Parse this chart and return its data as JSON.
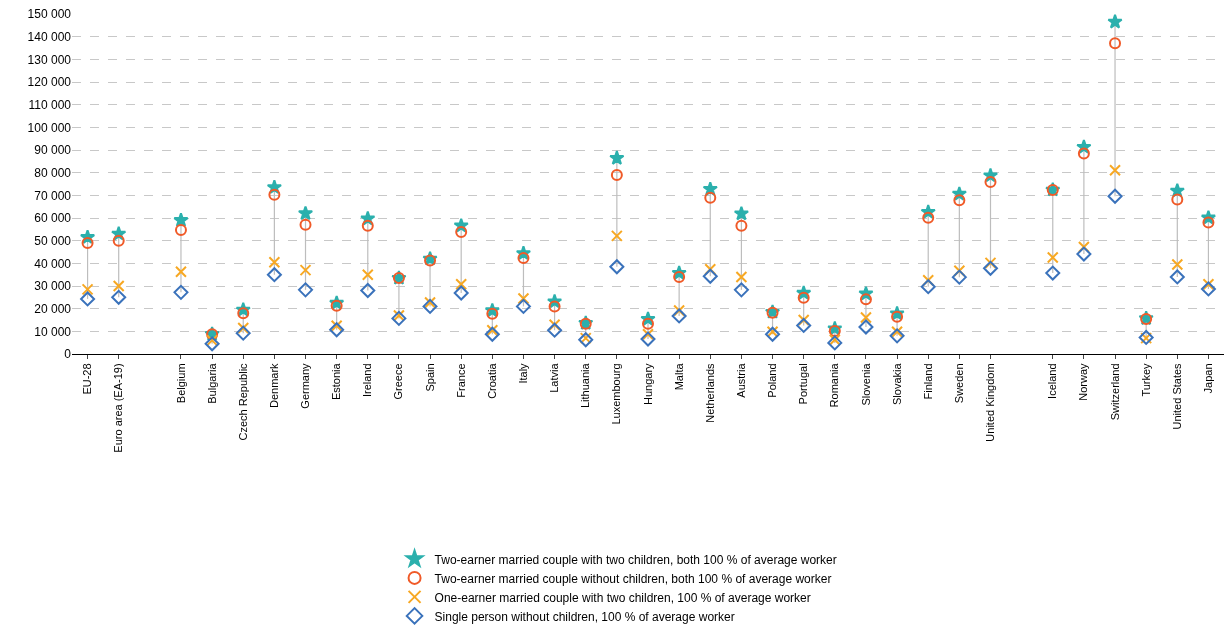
{
  "chart_data": {
    "type": "scatter",
    "categories": [
      "EU-28",
      "Euro area (EA-19)",
      null,
      "Belgium",
      "Bulgaria",
      "Czech Republic",
      "Denmark",
      "Germany",
      "Estonia",
      "Ireland",
      "Greece",
      "Spain",
      "France",
      "Croatia",
      "Italy",
      "Latvia",
      "Lithuania",
      "Luxembourg",
      "Hungary",
      "Malta",
      "Netherlands",
      "Austria",
      "Poland",
      "Portugal",
      "Romania",
      "Slovenia",
      "Slovakia",
      "Finland",
      "Sweden",
      "United Kingdom",
      null,
      "Iceland",
      "Norway",
      "Switzerland",
      "Turkey",
      "United States",
      "Japan"
    ],
    "series": [
      {
        "name": "Two-earner married couple with two children, both 100 % of average worker",
        "color": "#2bb0ad",
        "marker": "star",
        "values": [
          51500,
          53000,
          null,
          59000,
          8800,
          19500,
          73500,
          62000,
          22500,
          59700,
          33500,
          42000,
          56600,
          19200,
          44400,
          23100,
          13600,
          86400,
          15400,
          35700,
          72700,
          61900,
          18500,
          26900,
          11200,
          26600,
          17800,
          62600,
          70600,
          78700,
          null,
          72400,
          91300,
          146500,
          15700,
          72000,
          60100
        ]
      },
      {
        "name": "Two-earner married couple without children, both 100 % of average worker",
        "color": "#f05a28",
        "marker": "circle",
        "values": [
          49000,
          50000,
          null,
          54700,
          8700,
          18000,
          70300,
          57000,
          21300,
          56600,
          33500,
          41300,
          53800,
          17800,
          42300,
          21000,
          13300,
          79000,
          13300,
          34000,
          68900,
          56600,
          18200,
          24800,
          10100,
          24100,
          16400,
          60100,
          67800,
          75900,
          null,
          72400,
          88500,
          137100,
          15400,
          68200,
          58000
        ]
      },
      {
        "name": "One-earner married couple with two children, 100 % of average worker",
        "color": "#f7a823",
        "marker": "cross",
        "values": [
          28500,
          30000,
          null,
          36300,
          6000,
          11500,
          40500,
          37000,
          12500,
          35000,
          17000,
          22700,
          30800,
          10500,
          24500,
          12900,
          7000,
          52100,
          8700,
          19200,
          37400,
          34000,
          9800,
          15000,
          6300,
          16100,
          9800,
          32500,
          36700,
          40200,
          null,
          42600,
          47200,
          81100,
          7000,
          39500,
          30800
        ]
      },
      {
        "name": "Single person without children, 100 % of average worker",
        "color": "#3a72bb",
        "marker": "diamond",
        "values": [
          24300,
          25000,
          null,
          27200,
          4500,
          9200,
          35000,
          28300,
          10700,
          28000,
          15700,
          21000,
          26900,
          8700,
          21000,
          10500,
          6300,
          38500,
          6600,
          16800,
          34300,
          28300,
          8700,
          12600,
          4900,
          11900,
          8000,
          29700,
          33900,
          37800,
          null,
          35700,
          44100,
          69600,
          7300,
          34000,
          28700
        ]
      }
    ],
    "ylim": [
      0,
      150000
    ],
    "yticks": [
      0,
      {
        "value": 10000,
        "label": "10 000"
      },
      {
        "value": 20000,
        "label": "20 000"
      },
      {
        "value": 30000,
        "label": "30 000"
      },
      {
        "value": 40000,
        "label": "40 000"
      },
      {
        "value": 50000,
        "label": "50 000"
      },
      {
        "value": 60000,
        "label": "60 000"
      },
      {
        "value": 70000,
        "label": "70 000"
      },
      {
        "value": 80000,
        "label": "80 000"
      },
      {
        "value": 90000,
        "label": "90 000"
      },
      {
        "value": 100000,
        "label": "100 000"
      },
      {
        "value": 110000,
        "label": "110 000"
      },
      {
        "value": 120000,
        "label": "120 000"
      },
      {
        "value": 130000,
        "label": "130 000"
      },
      {
        "value": 140000,
        "label": "140 000"
      },
      {
        "value": 150000,
        "label": "150 000"
      }
    ],
    "grid": "y",
    "legend": "bottom"
  }
}
